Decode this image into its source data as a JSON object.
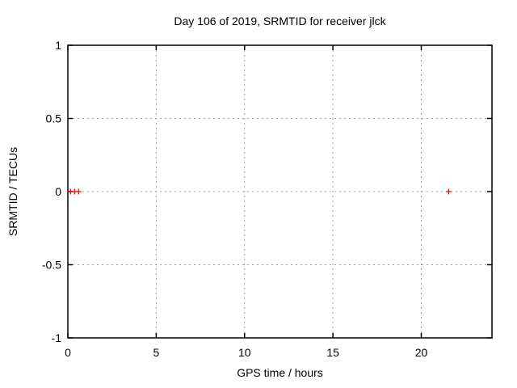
{
  "chart_data": {
    "type": "scatter",
    "title": "Day 106 of 2019, SRMTID for receiver jlck",
    "xlabel": "GPS time / hours",
    "ylabel": "SRMTID / TECUs",
    "xlim": [
      0,
      24
    ],
    "ylim": [
      -1,
      1
    ],
    "xticks": [
      {
        "value": 0,
        "label": "0"
      },
      {
        "value": 5,
        "label": "5"
      },
      {
        "value": 10,
        "label": "10"
      },
      {
        "value": 15,
        "label": "15"
      },
      {
        "value": 20,
        "label": "20"
      }
    ],
    "yticks": [
      {
        "value": -1,
        "label": "-1"
      },
      {
        "value": -0.5,
        "label": "-0.5"
      },
      {
        "value": 0,
        "label": "0"
      },
      {
        "value": 0.5,
        "label": "0.5"
      },
      {
        "value": 1,
        "label": "1"
      }
    ],
    "grid": true,
    "legend": "none",
    "series": [
      {
        "name": "SRMTID",
        "marker": "plus",
        "color": "#ff0000",
        "points": [
          {
            "x": 0.15,
            "y": 0.0
          },
          {
            "x": 0.38,
            "y": 0.0
          },
          {
            "x": 0.61,
            "y": 0.0
          },
          {
            "x": 21.55,
            "y": 0.0
          }
        ]
      }
    ],
    "colors": {
      "background": "#ffffff",
      "border": "#000000",
      "grid": "#a0a0a0",
      "text": "#000000"
    }
  }
}
